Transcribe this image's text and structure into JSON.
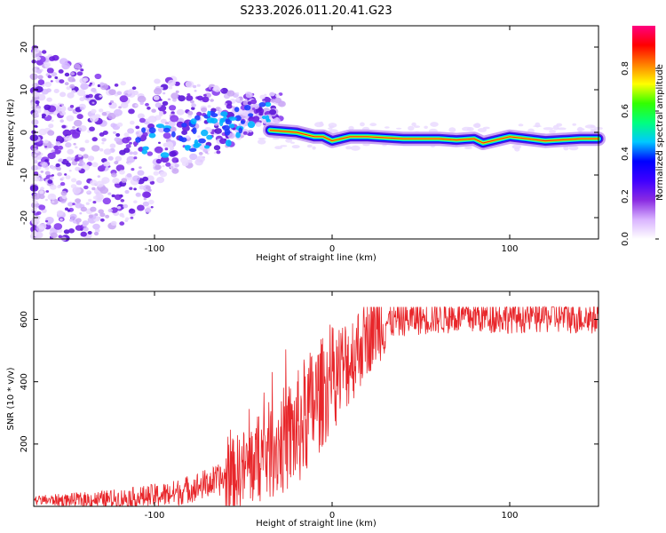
{
  "title": "S233.2026.011.20.41.G23",
  "chart_data": [
    {
      "type": "heatmap",
      "name": "spectrogram",
      "xlabel": "Height of straight line (km)",
      "ylabel": "Frequency (Hz)",
      "xlim": [
        -168,
        150
      ],
      "ylim": [
        -25,
        25
      ],
      "xticks": [
        -100,
        0,
        100
      ],
      "yticks": [
        -20,
        -10,
        0,
        10,
        20
      ],
      "colorbar": {
        "label": "Normalized spectral amplitude",
        "range": [
          0,
          1
        ],
        "ticks": [
          0.0,
          0.2,
          0.4,
          0.6,
          0.8
        ],
        "colors": [
          "#ffffff",
          "#d9b3ff",
          "#8a2be2",
          "#3f00ff",
          "#0000ff",
          "#00c8ff",
          "#00ff7f",
          "#32ff00",
          "#ffff00",
          "#ff8000",
          "#ff0000",
          "#ff0080"
        ]
      },
      "dominant_frequency_track": [
        {
          "x": -35,
          "y": 0.5
        },
        {
          "x": -20,
          "y": 0.0
        },
        {
          "x": -10,
          "y": -1.0
        },
        {
          "x": -5,
          "y": -1.0
        },
        {
          "x": 0,
          "y": -2.0
        },
        {
          "x": 10,
          "y": -1.0
        },
        {
          "x": 20,
          "y": -1.0
        },
        {
          "x": 40,
          "y": -1.5
        },
        {
          "x": 60,
          "y": -1.5
        },
        {
          "x": 70,
          "y": -1.8
        },
        {
          "x": 80,
          "y": -1.5
        },
        {
          "x": 85,
          "y": -2.5
        },
        {
          "x": 95,
          "y": -1.5
        },
        {
          "x": 100,
          "y": -1.0
        },
        {
          "x": 110,
          "y": -1.5
        },
        {
          "x": 120,
          "y": -2.0
        },
        {
          "x": 140,
          "y": -1.5
        },
        {
          "x": 150,
          "y": -1.5
        }
      ]
    },
    {
      "type": "line",
      "name": "snr",
      "xlabel": "Height of straight line (km)",
      "ylabel": "SNR (10 * v/v)",
      "xlim": [
        -168,
        150
      ],
      "ylim": [
        0,
        690
      ],
      "xticks": [
        -100,
        0,
        100
      ],
      "yticks": [
        200,
        400,
        600
      ],
      "color": "#e8262a",
      "series": [
        {
          "name": "SNR",
          "x": [
            -168,
            -150,
            -130,
            -110,
            -90,
            -75,
            -60,
            -50,
            -40,
            -30,
            -20,
            -15,
            -10,
            -5,
            0,
            5,
            10,
            15,
            20,
            25,
            30,
            40,
            50,
            75,
            100,
            125,
            150
          ],
          "y": [
            20,
            20,
            22,
            28,
            40,
            65,
            90,
            120,
            160,
            200,
            240,
            290,
            330,
            370,
            410,
            440,
            470,
            510,
            550,
            575,
            590,
            600,
            605,
            610,
            610,
            610,
            605
          ]
        }
      ]
    }
  ]
}
